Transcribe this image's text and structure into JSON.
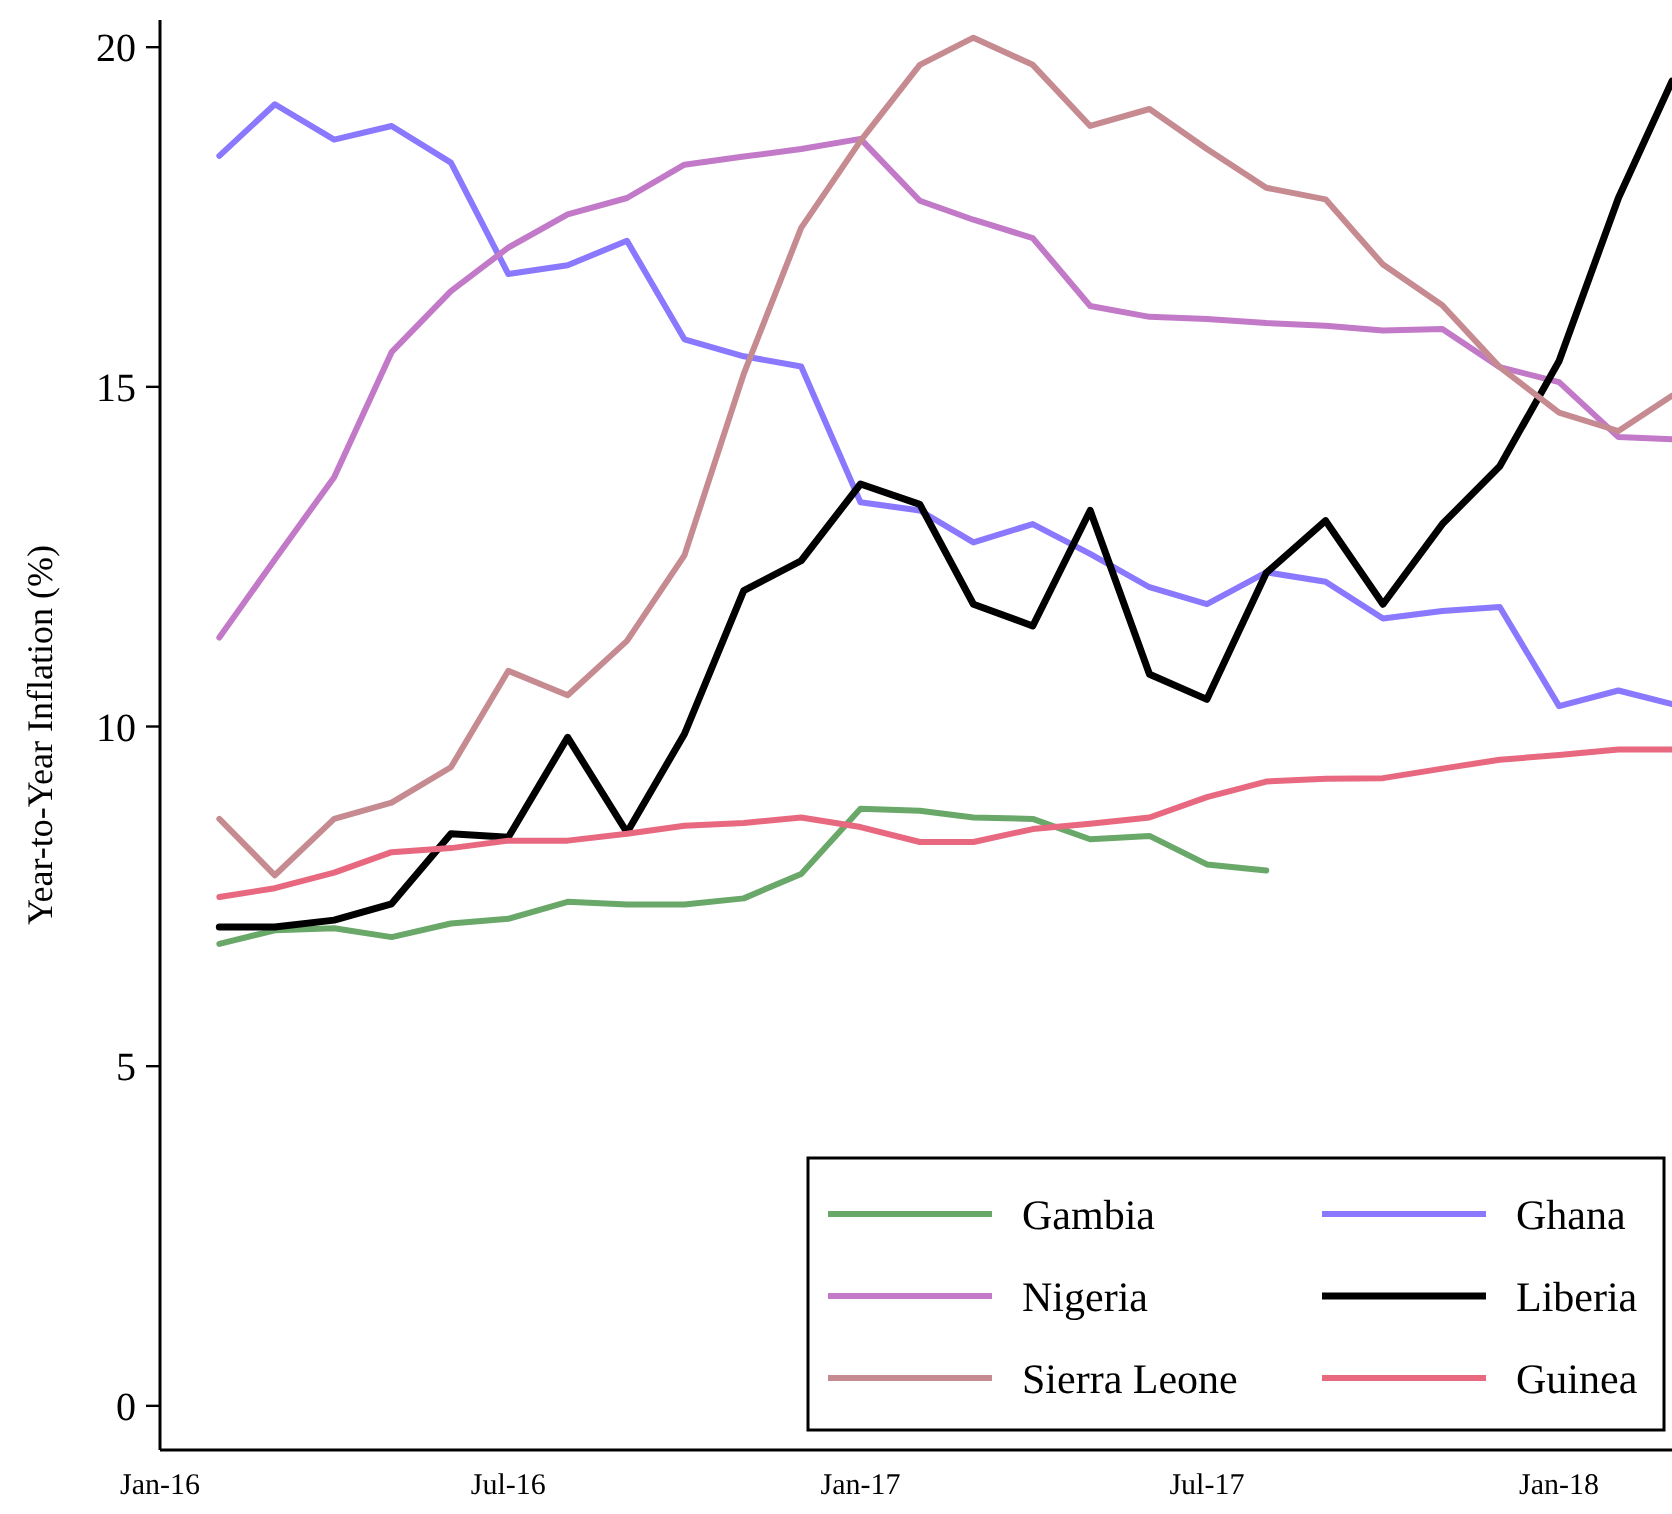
{
  "chart_data": {
    "type": "line",
    "ylabel": "Year-to-Year Inflation (%)",
    "x": [
      "2016-02",
      "2016-03",
      "2016-04",
      "2016-05",
      "2016-06",
      "2016-07",
      "2016-08",
      "2016-09",
      "2016-10",
      "2016-11",
      "2016-12",
      "2017-01",
      "2017-02",
      "2017-03",
      "2017-04",
      "2017-05",
      "2017-06",
      "2017-07",
      "2017-08",
      "2017-09",
      "2017-10",
      "2017-11",
      "2017-12",
      "2018-01",
      "2018-02",
      "2018-03"
    ],
    "series": [
      {
        "name": "Gambia",
        "color": "#6aa86a",
        "values": [
          6.8,
          7.0,
          7.03,
          6.9,
          7.1,
          7.17,
          7.42,
          7.38,
          7.38,
          7.47,
          7.83,
          8.79,
          8.76,
          8.66,
          8.64,
          8.34,
          8.39,
          7.97,
          7.88,
          null,
          null,
          null,
          null,
          null,
          null,
          null
        ]
      },
      {
        "name": "Ghana",
        "color": "#8a78ff",
        "values": [
          18.4,
          19.16,
          18.64,
          18.84,
          18.3,
          16.66,
          16.79,
          17.15,
          15.7,
          15.45,
          15.3,
          13.3,
          13.18,
          12.71,
          12.98,
          12.54,
          12.05,
          11.8,
          12.27,
          12.13,
          11.59,
          11.7,
          11.76,
          10.3,
          10.53,
          10.33
        ]
      },
      {
        "name": "Nigeria",
        "color": "#c27ac8",
        "values": [
          11.31,
          12.46,
          13.67,
          15.51,
          16.41,
          17.05,
          17.54,
          17.78,
          18.27,
          18.39,
          18.5,
          18.65,
          17.74,
          17.46,
          17.19,
          16.19,
          16.03,
          16.0,
          15.94,
          15.9,
          15.83,
          15.85,
          15.29,
          15.07,
          14.26,
          14.23
        ]
      },
      {
        "name": "Liberia",
        "color": "#000000",
        "values": [
          7.05,
          7.05,
          7.15,
          7.39,
          8.42,
          8.37,
          9.84,
          8.44,
          9.89,
          12.0,
          12.44,
          13.57,
          13.27,
          11.8,
          11.48,
          13.18,
          10.77,
          10.4,
          12.26,
          13.03,
          11.8,
          12.98,
          13.83,
          15.38,
          17.78,
          19.5
        ]
      },
      {
        "name": "Sierra Leone",
        "color": "#c68b91",
        "values": [
          8.64,
          7.81,
          8.64,
          8.88,
          9.4,
          10.82,
          10.46,
          11.26,
          12.52,
          15.19,
          17.34,
          18.62,
          19.74,
          20.14,
          19.74,
          18.84,
          19.09,
          18.5,
          17.93,
          17.76,
          16.8,
          16.2,
          15.29,
          14.62,
          14.35,
          14.87
        ]
      },
      {
        "name": "Guinea",
        "color": "#e8687f",
        "values": [
          7.49,
          7.62,
          7.85,
          8.15,
          8.21,
          8.32,
          8.32,
          8.42,
          8.54,
          8.58,
          8.66,
          8.52,
          8.3,
          8.3,
          8.49,
          8.57,
          8.66,
          8.96,
          9.19,
          9.23,
          9.24,
          9.38,
          9.51,
          9.58,
          9.66,
          9.66
        ]
      }
    ],
    "xlim": [
      "2016-01",
      "2018-03"
    ],
    "xticks": [
      {
        "value": "2016-01",
        "label": "Jan-16"
      },
      {
        "value": "2016-07",
        "label": "Jul-16"
      },
      {
        "value": "2017-01",
        "label": "Jan-17"
      },
      {
        "value": "2017-07",
        "label": "Jul-17"
      },
      {
        "value": "2018-01",
        "label": "Jan-18"
      }
    ],
    "ylim": [
      -0.65,
      20.4
    ],
    "yticks": [
      0,
      5,
      10,
      15,
      20
    ],
    "grid": false,
    "legend": "bottom right",
    "marker": "none",
    "line_style": "solid"
  }
}
